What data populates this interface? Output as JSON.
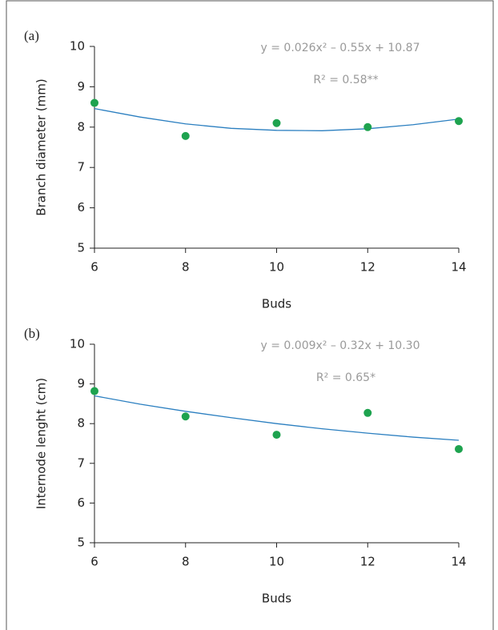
{
  "chart_data": [
    {
      "type": "scatter",
      "panel": "(a)",
      "equation": "y =  0.026x² – 0.55x + 10.87",
      "r2": "R² = 0.58**",
      "xlabel": "Buds",
      "ylabel": "Branch diameter (mm)",
      "x": [
        6,
        8,
        10,
        12,
        14
      ],
      "values": [
        8.6,
        7.78,
        8.1,
        8.0,
        8.15
      ],
      "color": "#1ea34f",
      "fit_x": [
        6,
        7,
        8,
        9,
        10,
        11,
        12,
        13,
        14
      ],
      "fit_values": [
        8.46,
        8.25,
        8.08,
        7.97,
        7.92,
        7.91,
        7.96,
        8.06,
        8.2
      ],
      "fit_color": "#2b7fc0",
      "xlim": [
        6,
        14
      ],
      "xticks": [
        6,
        8,
        10,
        12,
        14
      ],
      "ylim": [
        5,
        10
      ],
      "yticks": [
        5,
        6,
        7,
        8,
        9,
        10
      ]
    },
    {
      "type": "scatter",
      "panel": "(b)",
      "equation": "y =  0.009x² – 0.32x + 10.30",
      "r2": "R² = 0.65*",
      "xlabel": "Buds",
      "ylabel": "Internode lenght (cm)",
      "x": [
        6,
        8,
        10,
        12,
        14
      ],
      "values": [
        8.82,
        8.18,
        7.72,
        8.27,
        7.36
      ],
      "color": "#1ea34f",
      "fit_x": [
        6,
        7,
        8,
        9,
        10,
        11,
        12,
        13,
        14
      ],
      "fit_values": [
        8.7,
        8.49,
        8.31,
        8.15,
        8.0,
        7.87,
        7.76,
        7.66,
        7.58
      ],
      "fit_color": "#2b7fc0",
      "xlim": [
        6,
        14
      ],
      "xticks": [
        6,
        8,
        10,
        12,
        14
      ],
      "ylim": [
        5,
        10
      ],
      "yticks": [
        5,
        6,
        7,
        8,
        9,
        10
      ]
    }
  ]
}
